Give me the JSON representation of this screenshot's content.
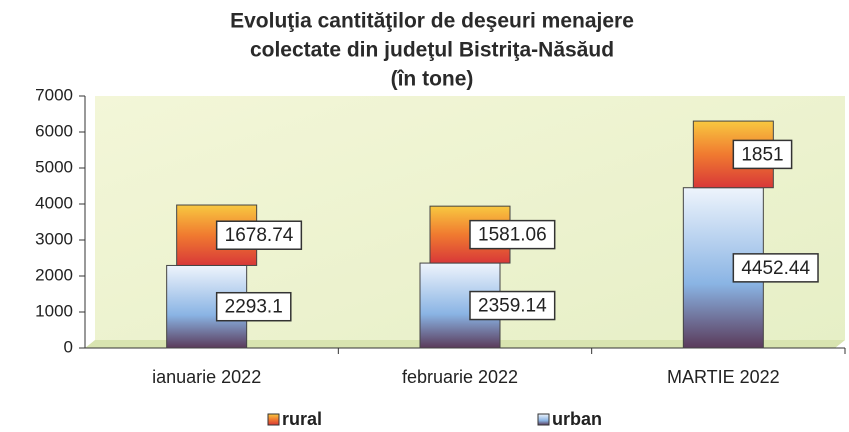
{
  "chart_data": {
    "type": "bar",
    "stacked": true,
    "title": [
      "Evoluţia cantităţilor de deşeuri menajere",
      "colectate din judeţul Bistriţa-Năsăud",
      "(în tone)"
    ],
    "categories": [
      "ianuarie 2022",
      "februarie 2022",
      "MARTIE 2022"
    ],
    "series": [
      {
        "name": "urban",
        "color": "#a8c8ec",
        "values": [
          2293.1,
          2359.14,
          4452.44
        ]
      },
      {
        "name": "rural",
        "color": "#f07a30",
        "values": [
          1678.74,
          1581.06,
          1851
        ]
      }
    ],
    "ylim": [
      0,
      7000
    ],
    "yticks": [
      0,
      1000,
      2000,
      3000,
      4000,
      5000,
      6000,
      7000
    ]
  }
}
